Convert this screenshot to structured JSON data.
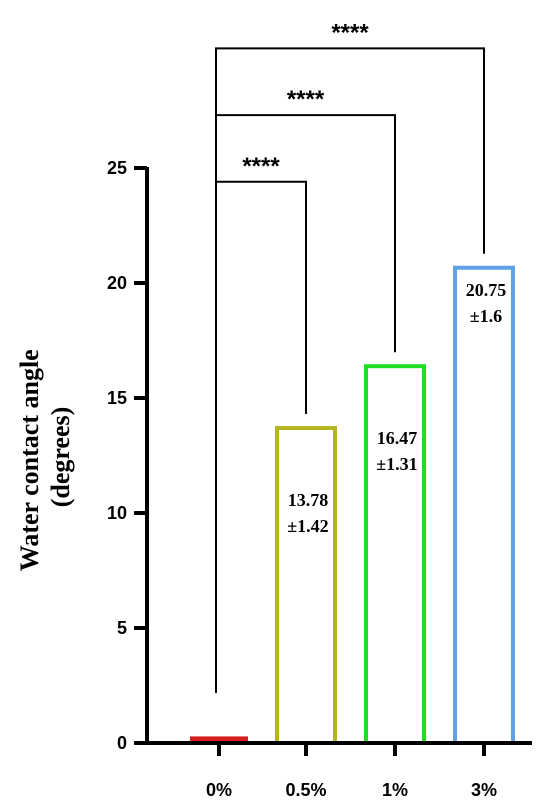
{
  "chart_data": {
    "type": "bar",
    "categories": [
      "0%",
      "0.5%",
      "1%",
      "3%"
    ],
    "values": [
      0.2,
      13.78,
      16.47,
      20.75
    ],
    "value_labels": [
      null,
      [
        "13.78",
        "±1.42"
      ],
      [
        "16.47",
        "±1.31"
      ],
      [
        "20.75",
        "±1.6"
      ]
    ],
    "bar_colors": [
      "#d92020",
      "#b5b520",
      "#22dd22",
      "#5fa0e8"
    ],
    "ylabel_lines": [
      "Water contact angle",
      "(degrees)"
    ],
    "ylim": [
      0,
      25
    ],
    "yticks": [
      0,
      5,
      10,
      15,
      20,
      25
    ],
    "grid": false,
    "significance": [
      {
        "from": 0,
        "to": 1,
        "label": "****",
        "top_value": 24.4
      },
      {
        "from": 0,
        "to": 2,
        "label": "****",
        "top_value": 27.3
      },
      {
        "from": 0,
        "to": 3,
        "label": "****",
        "top_value": 30.2
      }
    ]
  }
}
